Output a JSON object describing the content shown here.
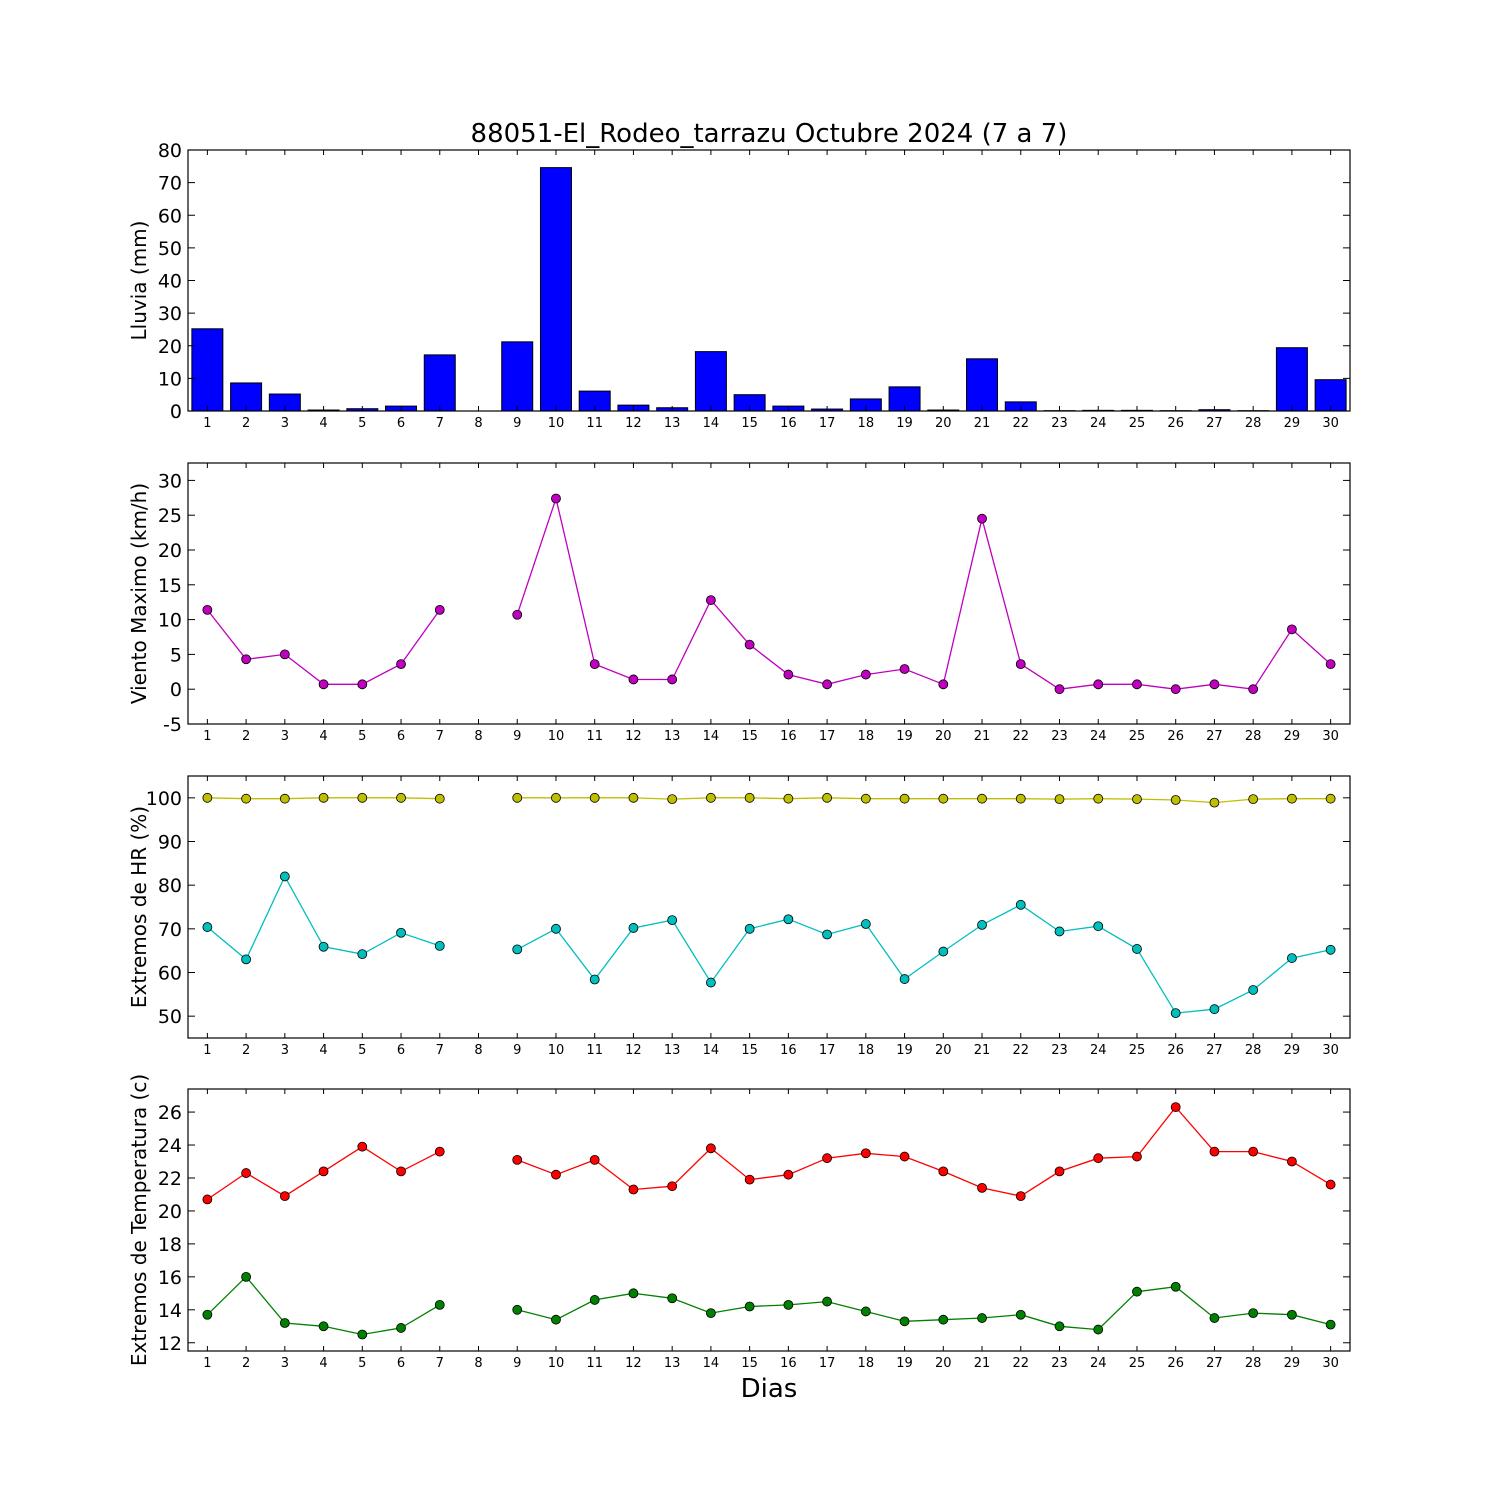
{
  "chart_data": [
    {
      "type": "bar",
      "title": "88051-El_Rodeo_tarrazu Octubre 2024  (7 a 7)",
      "xlabel": "",
      "ylabel": "Lluvia (mm)",
      "ylim": [
        0,
        80
      ],
      "yticks": [
        0,
        10,
        20,
        30,
        40,
        50,
        60,
        70,
        80
      ],
      "categories": [
        "1",
        "2",
        "3",
        "4",
        "5",
        "6",
        "7",
        "8",
        "9",
        "10",
        "11",
        "12",
        "13",
        "14",
        "15",
        "16",
        "17",
        "18",
        "19",
        "20",
        "21",
        "22",
        "23",
        "24",
        "25",
        "26",
        "27",
        "28",
        "29",
        "30"
      ],
      "series": [
        {
          "color": "#0000ff",
          "values": [
            25.2,
            8.6,
            5.2,
            0.3,
            0.7,
            1.5,
            17.2,
            null,
            21.2,
            74.6,
            6.1,
            1.8,
            1.0,
            18.2,
            5.0,
            1.5,
            0.6,
            3.7,
            7.4,
            0.3,
            16.0,
            2.8,
            0.1,
            0.2,
            0.2,
            0.1,
            0.4,
            0.1,
            19.4,
            9.6
          ]
        }
      ]
    },
    {
      "type": "line",
      "ylabel": "Viento Maximo (km/h)",
      "ylim": [
        -5,
        32.5
      ],
      "yticks": [
        -5,
        0,
        5,
        10,
        15,
        20,
        25,
        30
      ],
      "categories": [
        "1",
        "2",
        "3",
        "4",
        "5",
        "6",
        "7",
        "8",
        "9",
        "10",
        "11",
        "12",
        "13",
        "14",
        "15",
        "16",
        "17",
        "18",
        "19",
        "20",
        "21",
        "22",
        "23",
        "24",
        "25",
        "26",
        "27",
        "28",
        "29",
        "30"
      ],
      "series": [
        {
          "color": "#bf00bf",
          "values": [
            11.4,
            4.3,
            5.0,
            0.7,
            0.7,
            3.6,
            11.4,
            null,
            10.7,
            27.4,
            3.6,
            1.4,
            1.4,
            12.8,
            6.4,
            2.1,
            0.7,
            2.1,
            2.9,
            0.7,
            24.5,
            3.6,
            0.0,
            0.7,
            0.7,
            0.0,
            0.7,
            0.0,
            8.6,
            3.6
          ]
        }
      ]
    },
    {
      "type": "line",
      "ylabel": "Extremos de HR (%)",
      "ylim": [
        45,
        105
      ],
      "yticks": [
        50,
        60,
        70,
        80,
        90,
        100
      ],
      "categories": [
        "1",
        "2",
        "3",
        "4",
        "5",
        "6",
        "7",
        "8",
        "9",
        "10",
        "11",
        "12",
        "13",
        "14",
        "15",
        "16",
        "17",
        "18",
        "19",
        "20",
        "21",
        "22",
        "23",
        "24",
        "25",
        "26",
        "27",
        "28",
        "29",
        "30"
      ],
      "series": [
        {
          "color": "#bfbf00",
          "values": [
            100,
            99.8,
            99.8,
            100,
            100,
            100,
            99.8,
            null,
            100,
            100,
            100,
            100,
            99.7,
            100,
            100,
            99.8,
            100,
            99.8,
            99.8,
            99.8,
            99.8,
            99.8,
            99.7,
            99.8,
            99.7,
            99.5,
            98.9,
            99.7,
            99.8,
            99.8
          ]
        },
        {
          "color": "#00bfbf",
          "values": [
            70.4,
            63.0,
            82.0,
            65.9,
            64.2,
            69.1,
            66.1,
            null,
            65.3,
            70.0,
            58.4,
            70.2,
            72.0,
            57.7,
            70.0,
            72.2,
            68.7,
            71.1,
            58.5,
            64.8,
            70.9,
            75.5,
            69.4,
            70.6,
            65.4,
            50.7,
            51.6,
            56.0,
            63.3,
            65.2
          ]
        }
      ]
    },
    {
      "type": "line",
      "ylabel": "Extremos de Temperatura (c)",
      "xlabel": "Dias",
      "ylim": [
        11.5,
        27.4
      ],
      "yticks": [
        12,
        14,
        16,
        18,
        20,
        22,
        24,
        26
      ],
      "categories": [
        "1",
        "2",
        "3",
        "4",
        "5",
        "6",
        "7",
        "8",
        "9",
        "10",
        "11",
        "12",
        "13",
        "14",
        "15",
        "16",
        "17",
        "18",
        "19",
        "20",
        "21",
        "22",
        "23",
        "24",
        "25",
        "26",
        "27",
        "28",
        "29",
        "30"
      ],
      "series": [
        {
          "color": "#ff0000",
          "values": [
            20.7,
            22.3,
            20.9,
            22.4,
            23.9,
            22.4,
            23.6,
            null,
            23.1,
            22.2,
            23.1,
            21.3,
            21.5,
            23.8,
            21.9,
            22.2,
            23.2,
            23.5,
            23.3,
            22.4,
            21.4,
            20.9,
            22.4,
            23.2,
            23.3,
            26.3,
            23.6,
            23.6,
            23.0,
            21.6
          ]
        },
        {
          "color": "#008000",
          "values": [
            13.7,
            16.0,
            13.2,
            13.0,
            12.5,
            12.9,
            14.3,
            null,
            14.0,
            13.4,
            14.6,
            15.0,
            14.7,
            13.8,
            14.2,
            14.3,
            14.5,
            13.9,
            13.3,
            13.4,
            13.5,
            13.7,
            13.0,
            12.8,
            15.1,
            15.4,
            13.5,
            13.8,
            13.7,
            13.1
          ]
        }
      ]
    }
  ]
}
